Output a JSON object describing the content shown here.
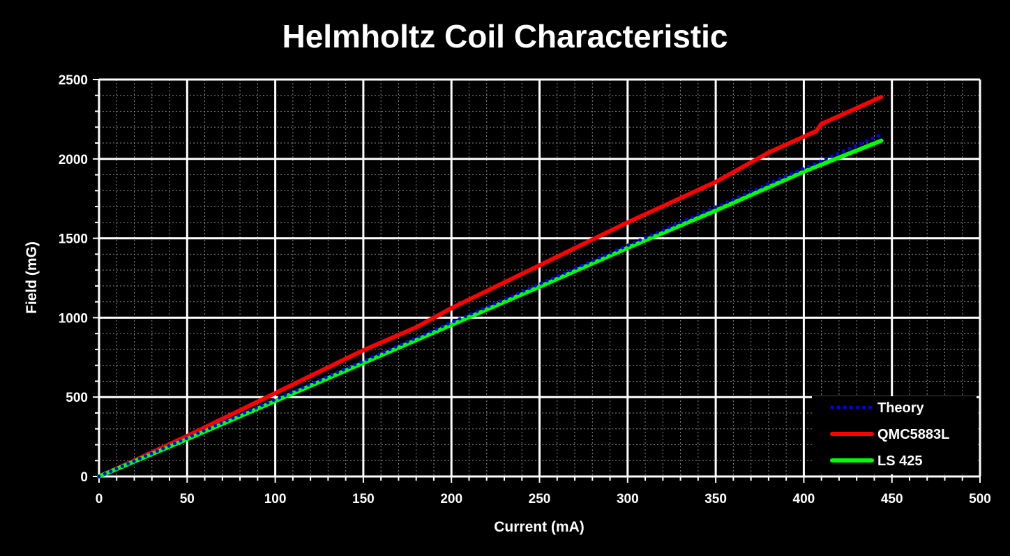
{
  "chart_data": {
    "type": "line",
    "title": "Helmholtz Coil Characteristic",
    "xlabel": "Current (mA)",
    "ylabel": "Field (mG)",
    "xlim": [
      0,
      500
    ],
    "ylim": [
      0,
      2500
    ],
    "x_ticks": [
      "0",
      "50",
      "100",
      "150",
      "200",
      "250",
      "300",
      "350",
      "400",
      "450",
      "500"
    ],
    "y_ticks": [
      "0",
      "500",
      "1000",
      "1500",
      "2000",
      "2500"
    ],
    "grid": "major and minor",
    "legend_position": "bottom-right",
    "series": [
      {
        "name": "Theory",
        "color": "#0000ff",
        "style": "dotted",
        "x": [
          0,
          50,
          100,
          150,
          200,
          250,
          300,
          350,
          400,
          444
        ],
        "y": [
          0,
          242,
          485,
          727,
          970,
          1212,
          1455,
          1697,
          1940,
          2153
        ]
      },
      {
        "name": "QMC5883L",
        "color": "#ff0000",
        "style": "solid",
        "x": [
          0,
          20,
          50,
          100,
          150,
          180,
          200,
          250,
          300,
          350,
          380,
          400,
          407,
          410,
          420,
          430,
          444
        ],
        "y": [
          0,
          100,
          255,
          525,
          795,
          940,
          1060,
          1330,
          1600,
          1855,
          2040,
          2140,
          2175,
          2220,
          2270,
          2320,
          2390
        ]
      },
      {
        "name": "LS 425",
        "color": "#00ff00",
        "style": "solid",
        "x": [
          0,
          50,
          100,
          150,
          200,
          250,
          300,
          350,
          400,
          444
        ],
        "y": [
          0,
          235,
          475,
          715,
          955,
          1195,
          1440,
          1675,
          1920,
          2115
        ]
      }
    ]
  }
}
